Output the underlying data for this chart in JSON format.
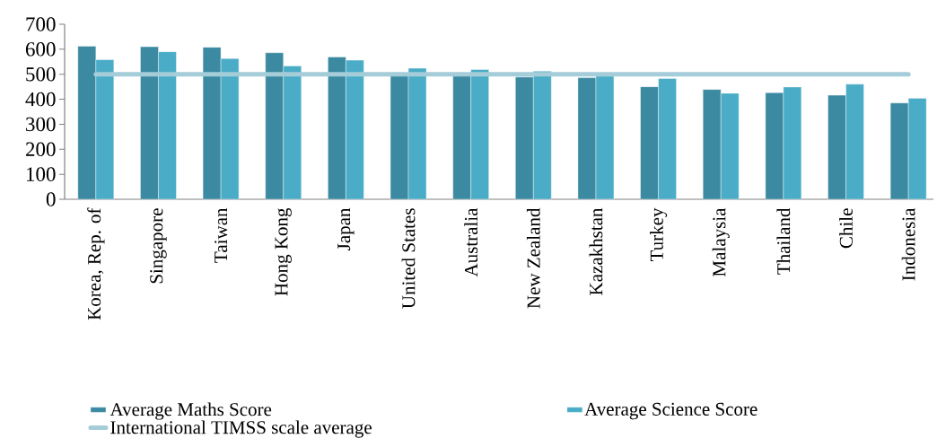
{
  "chart_data": {
    "type": "bar",
    "categories": [
      "Korea, Rep. of",
      "Singapore",
      "Taiwan",
      "Hong Kong",
      "Japan",
      "United States",
      "Australia",
      "New Zealand",
      "Kazakhstan",
      "Turkey",
      "Malaysia",
      "Thailand",
      "Chile",
      "Indonesia"
    ],
    "series": [
      {
        "name": "Average Maths Score",
        "color": "#3b8aa1",
        "values": [
          612,
          610,
          608,
          586,
          569,
          503,
          503,
          489,
          486,
          450,
          439,
          426,
          416,
          385
        ]
      },
      {
        "name": "Average Science Score",
        "color": "#4aacc6",
        "values": [
          558,
          590,
          563,
          533,
          556,
          524,
          519,
          512,
          493,
          483,
          424,
          449,
          460,
          404
        ]
      },
      {
        "name": "International TIMSS scale average",
        "type": "line",
        "color": "#a5cdd9",
        "values": [
          500,
          500,
          500,
          500,
          500,
          500,
          500,
          500,
          500,
          500,
          500,
          500,
          500,
          500
        ]
      }
    ],
    "ylim": [
      0,
      700
    ],
    "yticks": [
      0,
      100,
      200,
      300,
      400,
      500,
      600,
      700
    ],
    "legend": "bottom"
  }
}
